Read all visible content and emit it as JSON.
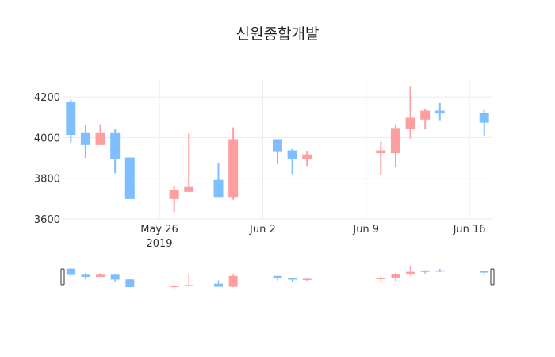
{
  "title": "신원종합개발",
  "colors": {
    "increasing": "#FF9E9E",
    "decreasing": "#7FBFFF",
    "grid": "#EBEBEB",
    "axis_text": "#333333",
    "slider_handle": "#333333"
  },
  "chart_data": {
    "type": "candlestick",
    "title": "신원종합개발",
    "xlabel": "",
    "ylabel": "",
    "ylim": [
      3600,
      4290
    ],
    "yticks": [
      3600,
      3800,
      4000,
      4200
    ],
    "xticks": [
      {
        "date": "2019-05-26",
        "label": "May 26",
        "sublabel": "2019"
      },
      {
        "date": "2019-06-02",
        "label": "Jun 2",
        "sublabel": ""
      },
      {
        "date": "2019-06-09",
        "label": "Jun 9",
        "sublabel": ""
      },
      {
        "date": "2019-06-16",
        "label": "Jun 16",
        "sublabel": ""
      }
    ],
    "xrange": [
      "2019-05-19T12:00",
      "2019-06-17T12:00"
    ],
    "grid": true,
    "rangeslider": true,
    "candles": [
      {
        "date": "2019-05-20",
        "open": 4175,
        "high": 4187,
        "low": 3975,
        "close": 4015
      },
      {
        "date": "2019-05-21",
        "open": 4020,
        "high": 4060,
        "low": 3900,
        "close": 3965
      },
      {
        "date": "2019-05-22",
        "open": 3965,
        "high": 4065,
        "low": 3965,
        "close": 4020
      },
      {
        "date": "2019-05-23",
        "open": 4020,
        "high": 4040,
        "low": 3825,
        "close": 3895
      },
      {
        "date": "2019-05-24",
        "open": 3900,
        "high": 3900,
        "low": 3700,
        "close": 3700
      },
      {
        "date": "2019-05-27",
        "open": 3700,
        "high": 3760,
        "low": 3635,
        "close": 3740
      },
      {
        "date": "2019-05-28",
        "open": 3735,
        "high": 4020,
        "low": 3735,
        "close": 3755
      },
      {
        "date": "2019-05-30",
        "open": 3790,
        "high": 3875,
        "low": 3710,
        "close": 3710
      },
      {
        "date": "2019-05-31",
        "open": 3710,
        "high": 4050,
        "low": 3695,
        "close": 3990
      },
      {
        "date": "2019-06-03",
        "open": 3990,
        "high": 3990,
        "low": 3870,
        "close": 3935
      },
      {
        "date": "2019-06-04",
        "open": 3935,
        "high": 3945,
        "low": 3820,
        "close": 3895
      },
      {
        "date": "2019-06-05",
        "open": 3895,
        "high": 3935,
        "low": 3860,
        "close": 3915
      },
      {
        "date": "2019-06-10",
        "open": 3925,
        "high": 3980,
        "low": 3815,
        "close": 3935
      },
      {
        "date": "2019-06-11",
        "open": 3925,
        "high": 4065,
        "low": 3855,
        "close": 4045
      },
      {
        "date": "2019-06-12",
        "open": 4045,
        "high": 4250,
        "low": 3995,
        "close": 4095
      },
      {
        "date": "2019-06-13",
        "open": 4090,
        "high": 4140,
        "low": 4040,
        "close": 4130
      },
      {
        "date": "2019-06-14",
        "open": 4130,
        "high": 4170,
        "low": 4085,
        "close": 4120
      },
      {
        "date": "2019-06-17",
        "open": 4120,
        "high": 4135,
        "low": 4010,
        "close": 4075
      }
    ]
  }
}
